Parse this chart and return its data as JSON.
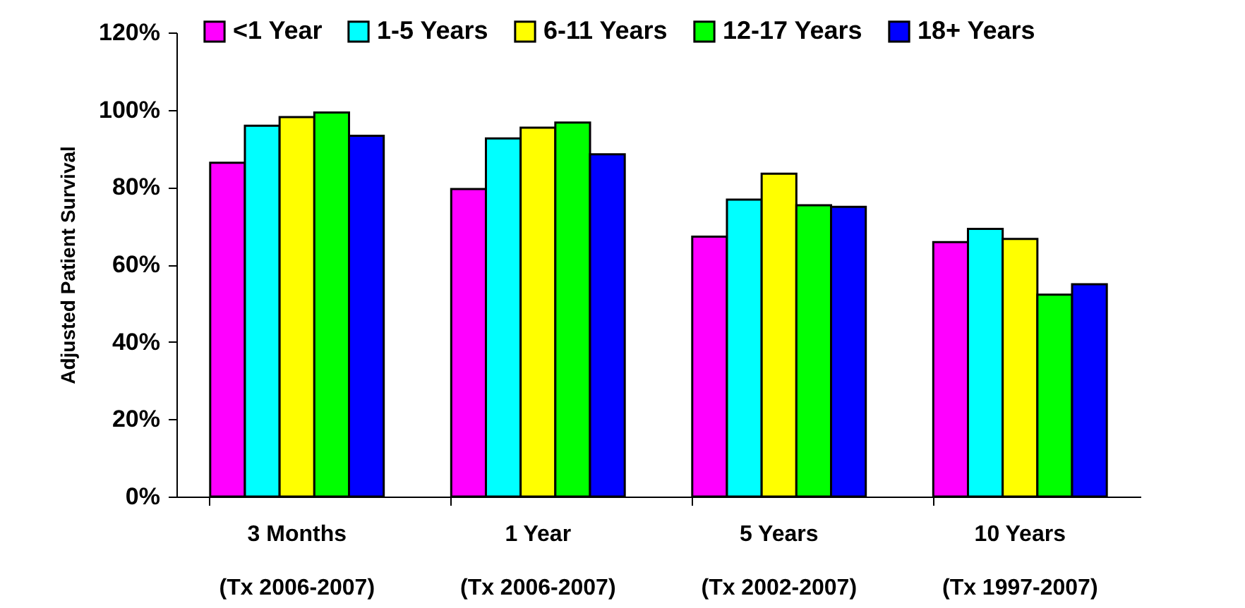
{
  "chart_data": {
    "type": "bar",
    "ylabel": "Adjusted Patient Survival",
    "categories": [
      "3 Months\n(Tx 2006-2007)",
      "1 Year\n(Tx 2006-2007)",
      "5 Years\n(Tx 2002-2007)",
      "10 Years\n(Tx 1997-2007)"
    ],
    "series": [
      {
        "name": "<1 Year",
        "color": "#ff00ff",
        "values": [
          86.3,
          79.5,
          67.2,
          65.8
        ]
      },
      {
        "name": "1-5 Years",
        "color": "#00ffff",
        "values": [
          95.9,
          92.6,
          76.8,
          69.2
        ]
      },
      {
        "name": "6-11 Years",
        "color": "#ffff00",
        "values": [
          98.1,
          95.4,
          83.5,
          66.6
        ]
      },
      {
        "name": "12-17 Years",
        "color": "#00ff00",
        "values": [
          99.3,
          96.7,
          75.3,
          52.2
        ]
      },
      {
        "name": "18+ Years",
        "color": "#0000ff",
        "values": [
          93.3,
          88.5,
          74.9,
          54.9
        ]
      }
    ],
    "ylim": [
      0,
      120
    ],
    "yticks": [
      {
        "value": 0,
        "label": "0%"
      },
      {
        "value": 20,
        "label": "20%"
      },
      {
        "value": 40,
        "label": "40%"
      },
      {
        "value": 60,
        "label": "60%"
      },
      {
        "value": 80,
        "label": "80%"
      },
      {
        "value": 100,
        "label": "100%"
      },
      {
        "value": 120,
        "label": "120%"
      }
    ],
    "grid": false,
    "legend": "top"
  }
}
